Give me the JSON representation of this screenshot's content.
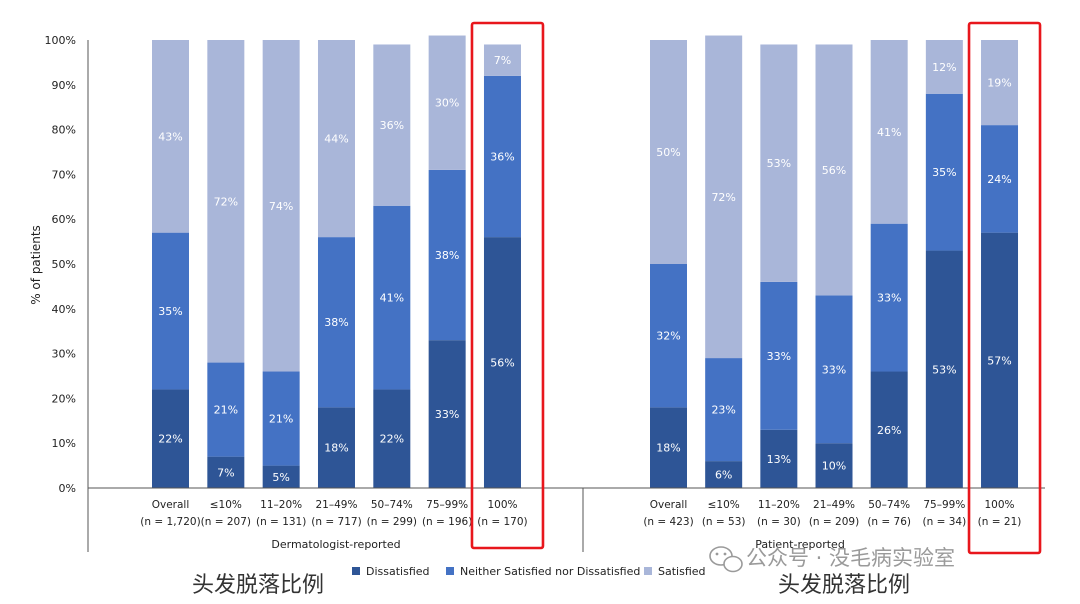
{
  "chart_data": {
    "type": "bar",
    "stacked": true,
    "percent_stacked": true,
    "ylabel": "% of patients",
    "ylim": [
      0,
      100
    ],
    "yticks": [
      "0%",
      "10%",
      "20%",
      "30%",
      "40%",
      "50%",
      "60%",
      "70%",
      "80%",
      "90%",
      "100%"
    ],
    "grid": false,
    "legend_position": "bottom",
    "colors": {
      "Dissatisfied": "#2e5596",
      "Neither Satisfied nor Dissatisfied": "#4472c4",
      "Satisfied": "#a9b6d9",
      "highlight": "#e8161c"
    },
    "series_names": [
      "Dissatisfied",
      "Neither Satisfied nor Dissatisfied",
      "Satisfied"
    ],
    "groups": [
      {
        "name": "Dermatologist-reported",
        "categories": [
          [
            "Overall",
            "(n = 1,720)"
          ],
          [
            "≤10%",
            "(n = 207)"
          ],
          [
            "11–20%",
            "(n = 131)"
          ],
          [
            "21–49%",
            "(n = 717)"
          ],
          [
            "50–74%",
            "(n = 299)"
          ],
          [
            "75–99%",
            "(n = 196)"
          ],
          [
            "100%",
            "(n = 170)"
          ]
        ],
        "values": [
          [
            22,
            35,
            43
          ],
          [
            7,
            21,
            72
          ],
          [
            5,
            21,
            74
          ],
          [
            18,
            38,
            44
          ],
          [
            22,
            41,
            36
          ],
          [
            33,
            38,
            30
          ],
          [
            56,
            36,
            7
          ]
        ],
        "labels": [
          [
            "22%",
            "35%",
            "43%"
          ],
          [
            "7%",
            "21%",
            "72%"
          ],
          [
            "5%",
            "21%",
            "74%"
          ],
          [
            "18%",
            "38%",
            "44%"
          ],
          [
            "22%",
            "41%",
            "36%"
          ],
          [
            "33%",
            "38%",
            "30%"
          ],
          [
            "56%",
            "36%",
            "7%"
          ]
        ],
        "highlight_last": true
      },
      {
        "name": "Patient-reported",
        "categories": [
          [
            "Overall",
            "(n = 423)"
          ],
          [
            "≤10%",
            "(n = 53)"
          ],
          [
            "11–20%",
            "(n = 30)"
          ],
          [
            "21–49%",
            "(n = 209)"
          ],
          [
            "50–74%",
            "(n = 76)"
          ],
          [
            "75–99%",
            "(n = 34)"
          ],
          [
            "100%",
            "(n = 21)"
          ]
        ],
        "values": [
          [
            18,
            32,
            50
          ],
          [
            6,
            23,
            72
          ],
          [
            13,
            33,
            53
          ],
          [
            10,
            33,
            56
          ],
          [
            26,
            33,
            41
          ],
          [
            53,
            35,
            12
          ],
          [
            57,
            24,
            19
          ]
        ],
        "labels": [
          [
            "18%",
            "32%",
            "50%"
          ],
          [
            "6%",
            "23%",
            "72%"
          ],
          [
            "13%",
            "33%",
            "53%"
          ],
          [
            "10%",
            "33%",
            "56%"
          ],
          [
            "26%",
            "33%",
            "41%"
          ],
          [
            "53%",
            "35%",
            "12%"
          ],
          [
            "57%",
            "24%",
            "19%"
          ]
        ],
        "highlight_last": true
      }
    ]
  },
  "annotations": {
    "left_caption": "头发脱落比例",
    "right_caption": "头发脱落比例",
    "watermark": "公众号 · 没毛病实验室"
  }
}
